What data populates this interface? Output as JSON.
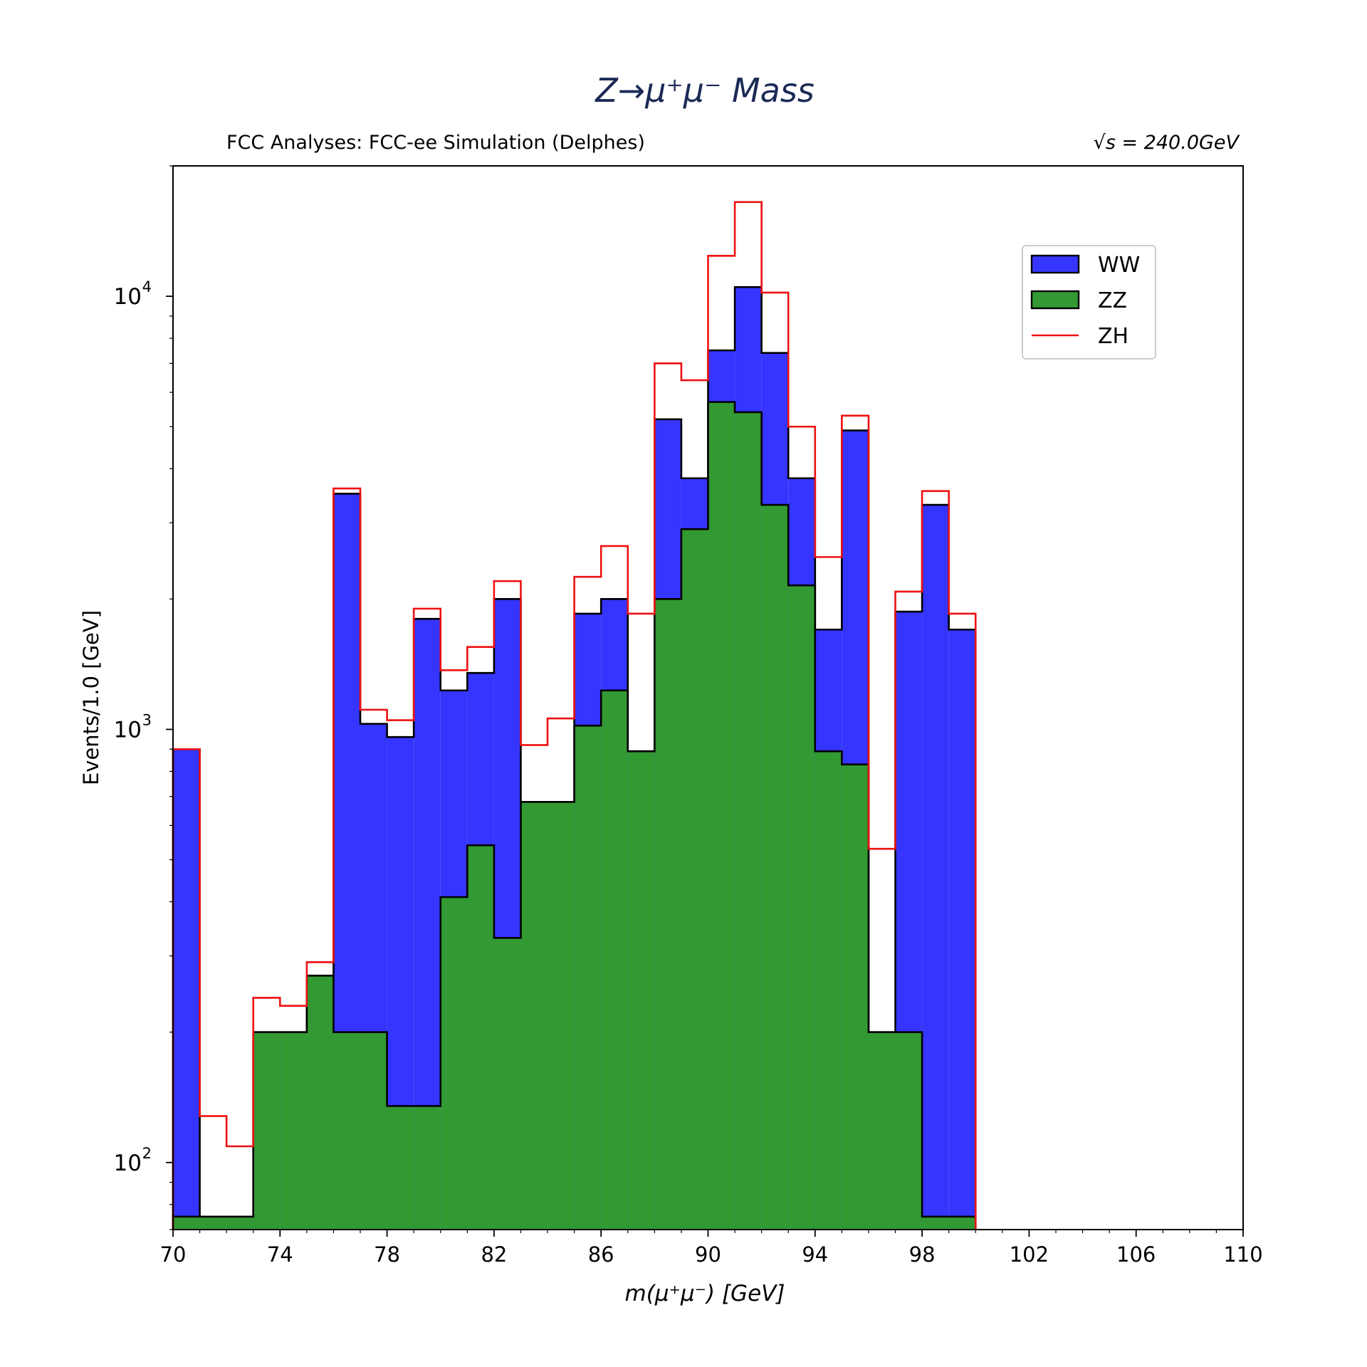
{
  "chart_data": {
    "type": "bar",
    "title": "Z→μ⁺μ⁻ Mass",
    "title_color": "#1b2a55",
    "subtitle_left": "FCC Analyses: FCC-ee Simulation (Delphes)",
    "subtitle_right": "√s = 240.0GeV",
    "xlabel": "m(μ⁺μ⁻) [GeV]",
    "ylabel": "Events/1.0 [GeV]",
    "y_scale": "log",
    "xlim": [
      70,
      110
    ],
    "ylim": [
      70,
      20000
    ],
    "x_ticks": [
      "70",
      "74",
      "78",
      "82",
      "86",
      "90",
      "94",
      "98",
      "102",
      "106",
      "110"
    ],
    "y_ticks": [
      {
        "value": 100,
        "base": "10",
        "exp": "2"
      },
      {
        "value": 1000,
        "base": "10",
        "exp": "3"
      },
      {
        "value": 10000,
        "base": "10",
        "exp": "4"
      }
    ],
    "bin_edges": [
      70,
      71,
      72,
      73,
      74,
      75,
      76,
      77,
      78,
      79,
      80,
      81,
      82,
      83,
      84,
      85,
      86,
      87,
      88,
      89,
      90,
      91,
      92,
      93,
      94,
      95,
      96,
      97,
      98,
      99,
      100
    ],
    "legend_position": "top-right",
    "grid": false,
    "series": [
      {
        "name": "WW",
        "style": "filled",
        "color": "#3535ff",
        "values": [
          900,
          75,
          75,
          200,
          200,
          270,
          3500,
          1030,
          960,
          1800,
          1230,
          1350,
          2000,
          680,
          680,
          1850,
          2000,
          890,
          5200,
          3800,
          7500,
          10500,
          7400,
          3800,
          1700,
          4900,
          200,
          1870,
          3300,
          1700
        ]
      },
      {
        "name": "ZZ",
        "style": "filled",
        "color": "#339933",
        "values": [
          75,
          75,
          75,
          200,
          200,
          270,
          200,
          200,
          135,
          135,
          410,
          540,
          330,
          680,
          680,
          1020,
          1230,
          890,
          2000,
          2900,
          5700,
          5400,
          3300,
          2150,
          890,
          830,
          200,
          200,
          75,
          75
        ]
      },
      {
        "name": "ZH",
        "style": "step",
        "color": "#ee1111",
        "values": [
          900,
          128,
          109,
          240,
          230,
          290,
          3600,
          1110,
          1050,
          1900,
          1370,
          1550,
          2200,
          920,
          1060,
          2250,
          2650,
          1850,
          7000,
          6400,
          12400,
          16500,
          10200,
          5000,
          2500,
          5300,
          530,
          2080,
          3550,
          1850
        ]
      }
    ]
  }
}
